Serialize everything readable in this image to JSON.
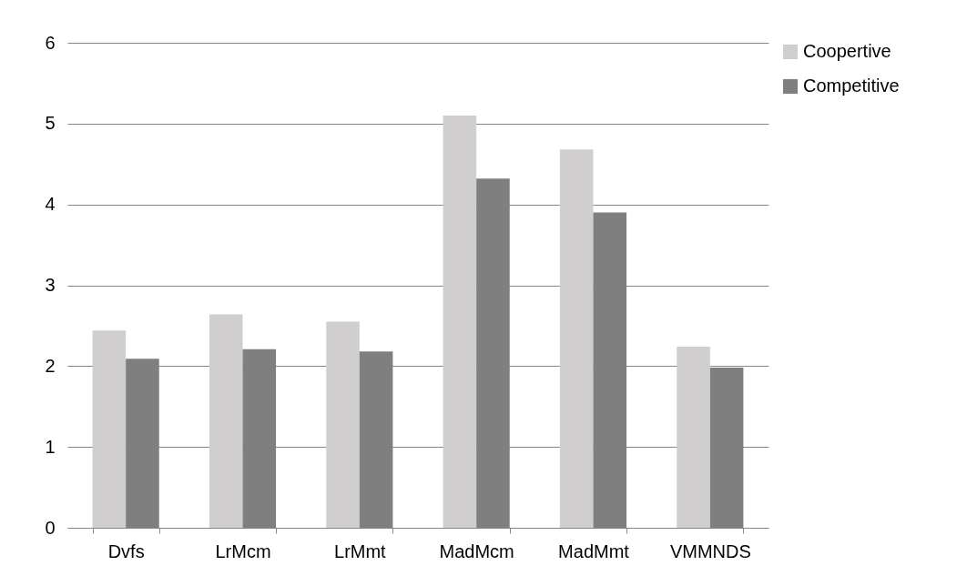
{
  "chart_data": {
    "type": "bar",
    "categories": [
      "Dvfs",
      "LrMcm",
      "LrMmt",
      "MadMcm",
      "MadMmt",
      "VMMNDS"
    ],
    "series": [
      {
        "name": "Coopertive",
        "color": "#d0cece",
        "values": [
          2.44,
          2.64,
          2.55,
          5.1,
          4.68,
          2.24
        ]
      },
      {
        "name": "Competitive",
        "color": "#7f7f7f",
        "values": [
          2.09,
          2.21,
          2.18,
          4.32,
          3.9,
          1.98
        ]
      }
    ],
    "ylim": [
      0,
      6
    ],
    "yticks": [
      0,
      1,
      2,
      3,
      4,
      5,
      6
    ],
    "grid": "y",
    "legend": "right"
  }
}
